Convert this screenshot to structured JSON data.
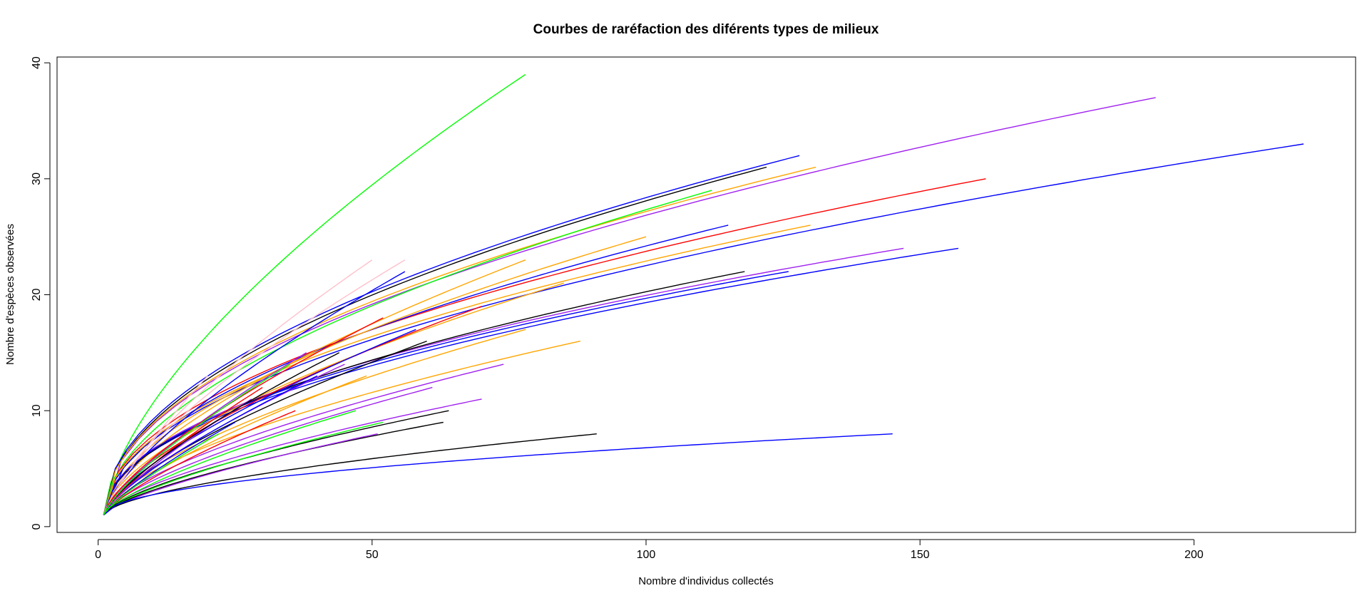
{
  "chart_data": {
    "type": "line",
    "title": "Courbes de raréfaction des diférents types de milieux",
    "xlabel": "Nombre d'individus collectés",
    "ylabel": "Nombre d'espèces observées",
    "xlim": [
      -7.5,
      229.5
    ],
    "ylim": [
      -0.5,
      40.5
    ],
    "xticks": [
      0,
      50,
      100,
      150,
      200
    ],
    "yticks": [
      0,
      10,
      20,
      30,
      40
    ],
    "grid": false,
    "legend": "none",
    "curve_shape": "rarefaction curves starting at (1, 1), endpoint = (total individuals, total species)",
    "series": [
      {
        "color": "#00ff00",
        "values": [
          [
            1,
            1
          ],
          [
            78,
            39
          ]
        ]
      },
      {
        "color": "#a020f0",
        "values": [
          [
            1,
            1
          ],
          [
            193,
            37
          ]
        ]
      },
      {
        "color": "#0000ff",
        "values": [
          [
            1,
            1
          ],
          [
            220,
            33
          ]
        ]
      },
      {
        "color": "#0000ff",
        "values": [
          [
            1,
            1
          ],
          [
            128,
            32
          ]
        ]
      },
      {
        "color": "#000000",
        "values": [
          [
            1,
            1
          ],
          [
            122,
            31
          ]
        ]
      },
      {
        "color": "#ffa500",
        "values": [
          [
            1,
            1
          ],
          [
            131,
            31
          ]
        ]
      },
      {
        "color": "#00ff00",
        "values": [
          [
            1,
            1
          ],
          [
            112,
            29
          ]
        ]
      },
      {
        "color": "#ff0000",
        "values": [
          [
            1,
            1
          ],
          [
            162,
            30
          ]
        ]
      },
      {
        "color": "#0000ff",
        "values": [
          [
            1,
            1
          ],
          [
            115,
            26
          ]
        ]
      },
      {
        "color": "#ffa500",
        "values": [
          [
            1,
            1
          ],
          [
            130,
            26
          ]
        ]
      },
      {
        "color": "#ffa500",
        "values": [
          [
            1,
            1
          ],
          [
            100,
            25
          ]
        ]
      },
      {
        "color": "#a020f0",
        "values": [
          [
            1,
            1
          ],
          [
            147,
            24
          ]
        ]
      },
      {
        "color": "#0000ff",
        "values": [
          [
            1,
            1
          ],
          [
            157,
            24
          ]
        ]
      },
      {
        "color": "#ffc0cb",
        "values": [
          [
            1,
            1
          ],
          [
            50,
            23
          ]
        ]
      },
      {
        "color": "#ffc0cb",
        "values": [
          [
            1,
            1
          ],
          [
            56,
            23
          ]
        ]
      },
      {
        "color": "#ffa500",
        "values": [
          [
            1,
            1
          ],
          [
            78,
            23
          ]
        ]
      },
      {
        "color": "#0000ff",
        "values": [
          [
            1,
            1
          ],
          [
            56,
            22
          ]
        ]
      },
      {
        "color": "#000000",
        "values": [
          [
            1,
            1
          ],
          [
            118,
            22
          ]
        ]
      },
      {
        "color": "#0000ff",
        "values": [
          [
            1,
            1
          ],
          [
            126,
            22
          ]
        ]
      },
      {
        "color": "#ffa500",
        "values": [
          [
            1,
            1
          ],
          [
            85,
            21
          ]
        ]
      },
      {
        "color": "#ff0000",
        "values": [
          [
            1,
            1
          ],
          [
            70,
            19
          ]
        ]
      },
      {
        "color": "#ffa500",
        "values": [
          [
            1,
            1
          ],
          [
            78,
            17
          ]
        ]
      },
      {
        "color": "#0000ff",
        "values": [
          [
            1,
            1
          ],
          [
            58,
            17
          ]
        ]
      },
      {
        "color": "#000000",
        "values": [
          [
            1,
            1
          ],
          [
            60,
            16
          ]
        ]
      },
      {
        "color": "#ffa500",
        "values": [
          [
            1,
            1
          ],
          [
            88,
            16
          ]
        ]
      },
      {
        "color": "#a020f0",
        "values": [
          [
            1,
            1
          ],
          [
            74,
            14
          ]
        ]
      },
      {
        "color": "#a020f0",
        "values": [
          [
            1,
            1
          ],
          [
            45,
            14
          ]
        ]
      },
      {
        "color": "#0000ff",
        "values": [
          [
            1,
            1
          ],
          [
            40,
            13
          ]
        ]
      },
      {
        "color": "#ffa500",
        "values": [
          [
            1,
            1
          ],
          [
            49,
            13
          ]
        ]
      },
      {
        "color": "#a020f0",
        "values": [
          [
            1,
            1
          ],
          [
            61,
            12
          ]
        ]
      },
      {
        "color": "#a020f0",
        "values": [
          [
            1,
            1
          ],
          [
            70,
            11
          ]
        ]
      },
      {
        "color": "#ff0000",
        "values": [
          [
            1,
            1
          ],
          [
            36,
            10
          ]
        ]
      },
      {
        "color": "#00ff00",
        "values": [
          [
            1,
            1
          ],
          [
            47,
            10
          ]
        ]
      },
      {
        "color": "#000000",
        "values": [
          [
            1,
            1
          ],
          [
            64,
            10
          ]
        ]
      },
      {
        "color": "#00ff00",
        "values": [
          [
            1,
            1
          ],
          [
            52,
            9
          ]
        ]
      },
      {
        "color": "#000000",
        "values": [
          [
            1,
            1
          ],
          [
            63,
            9
          ]
        ]
      },
      {
        "color": "#a020f0",
        "values": [
          [
            1,
            1
          ],
          [
            51,
            8
          ]
        ]
      },
      {
        "color": "#000000",
        "values": [
          [
            1,
            1
          ],
          [
            91,
            8
          ]
        ]
      },
      {
        "color": "#0000ff",
        "values": [
          [
            1,
            1
          ],
          [
            145,
            8
          ]
        ]
      },
      {
        "color": "#ff0000",
        "values": [
          [
            1,
            1
          ],
          [
            30,
            12
          ]
        ]
      },
      {
        "color": "#a020f0",
        "values": [
          [
            1,
            1
          ],
          [
            28,
            11
          ]
        ]
      },
      {
        "color": "#0000ff",
        "values": [
          [
            1,
            1
          ],
          [
            25,
            9
          ]
        ]
      },
      {
        "color": "#00ff00",
        "values": [
          [
            1,
            1
          ],
          [
            22,
            8
          ]
        ]
      },
      {
        "color": "#ffc0cb",
        "values": [
          [
            1,
            1
          ],
          [
            20,
            13
          ]
        ]
      },
      {
        "color": "#a020f0",
        "values": [
          [
            1,
            1
          ],
          [
            38,
            15
          ]
        ]
      },
      {
        "color": "#ff0000",
        "values": [
          [
            1,
            1
          ],
          [
            52,
            18
          ]
        ]
      },
      {
        "color": "#000000",
        "values": [
          [
            1,
            1
          ],
          [
            44,
            15
          ]
        ]
      },
      {
        "color": "#00ff00",
        "values": [
          [
            1,
            1
          ],
          [
            35,
            14
          ]
        ]
      }
    ]
  }
}
